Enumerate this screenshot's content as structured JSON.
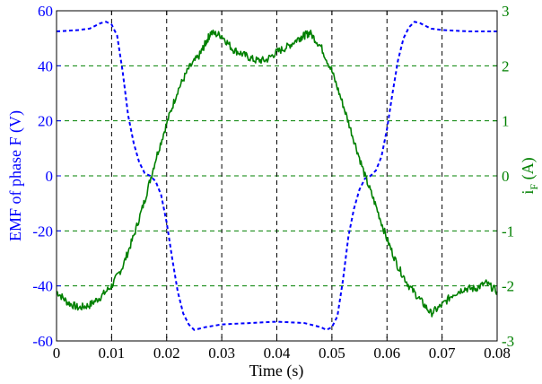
{
  "chart_data": {
    "type": "line",
    "title": "",
    "xlabel": "Time (s)",
    "ylabel_left": "EMF of phase F (V)",
    "ylabel_right_main": "i",
    "ylabel_right_sub": "F",
    "ylabel_right_unit": " (A)",
    "xlim": [
      0,
      0.08
    ],
    "ylim_left": [
      -60,
      60
    ],
    "ylim_right": [
      -3,
      3
    ],
    "x_ticks": [
      0,
      0.01,
      0.02,
      0.03,
      0.04,
      0.05,
      0.06,
      0.07,
      0.08
    ],
    "x_tick_labels": [
      "0",
      "0.01",
      "0.02",
      "0.03",
      "0.04",
      "0.05",
      "0.06",
      "0.07",
      "0.08"
    ],
    "y_left_ticks": [
      -60,
      -40,
      -20,
      0,
      20,
      40,
      60
    ],
    "y_left_tick_labels": [
      "-60",
      "-40",
      "-20",
      "0",
      "20",
      "40",
      "60"
    ],
    "y_right_ticks": [
      -3,
      -2,
      -1,
      0,
      1,
      2,
      3
    ],
    "y_right_tick_labels": [
      "-3",
      "-2",
      "-1",
      "0",
      "1",
      "2",
      "3"
    ],
    "grid": {
      "vertical": "black dashed",
      "horizontal": "green dashed"
    },
    "series": [
      {
        "axis": "left",
        "color": "#0000ff",
        "style": "dashed",
        "x": [
          0,
          0.004,
          0.006,
          0.008,
          0.009,
          0.01,
          0.011,
          0.012,
          0.013,
          0.014,
          0.015,
          0.016,
          0.017,
          0.018,
          0.019,
          0.02,
          0.021,
          0.022,
          0.023,
          0.024,
          0.025,
          0.027,
          0.03,
          0.035,
          0.04,
          0.045,
          0.048,
          0.049,
          0.05,
          0.051,
          0.052,
          0.053,
          0.054,
          0.055,
          0.056,
          0.057,
          0.058,
          0.059,
          0.06,
          0.061,
          0.062,
          0.063,
          0.064,
          0.065,
          0.066,
          0.068,
          0.07,
          0.075,
          0.08
        ],
        "values": [
          52.5,
          53,
          53.5,
          55.5,
          56,
          55,
          51,
          38,
          22,
          12,
          5,
          1,
          0,
          -2,
          -7,
          -17,
          -30,
          -42,
          -50,
          -54,
          -56,
          -55,
          -54,
          -53.5,
          -53,
          -53.5,
          -55,
          -56,
          -55,
          -51,
          -38,
          -22,
          -12,
          -5,
          -1,
          0,
          2,
          7,
          17,
          30,
          42,
          50,
          54,
          56,
          55.5,
          53.5,
          53,
          52.5,
          52.5
        ]
      },
      {
        "axis": "right",
        "color": "#008000",
        "style": "solid",
        "x": [
          0,
          0.002,
          0.004,
          0.006,
          0.008,
          0.01,
          0.012,
          0.014,
          0.016,
          0.018,
          0.02,
          0.022,
          0.024,
          0.026,
          0.027,
          0.028,
          0.03,
          0.032,
          0.034,
          0.036,
          0.038,
          0.04,
          0.042,
          0.044,
          0.045,
          0.046,
          0.048,
          0.05,
          0.052,
          0.054,
          0.056,
          0.058,
          0.06,
          0.062,
          0.064,
          0.066,
          0.068,
          0.07,
          0.072,
          0.074,
          0.076,
          0.078,
          0.08
        ],
        "values": [
          -2.1,
          -2.3,
          -2.4,
          -2.35,
          -2.2,
          -2.0,
          -1.65,
          -1.1,
          -0.45,
          0.3,
          0.95,
          1.55,
          1.95,
          2.2,
          2.4,
          2.6,
          2.55,
          2.3,
          2.2,
          2.1,
          2.1,
          2.25,
          2.35,
          2.5,
          2.55,
          2.6,
          2.35,
          1.9,
          1.3,
          0.65,
          0.0,
          -0.55,
          -1.15,
          -1.65,
          -2.0,
          -2.25,
          -2.5,
          -2.35,
          -2.15,
          -2.05,
          -2.05,
          -1.95,
          -2.1
        ]
      }
    ]
  }
}
